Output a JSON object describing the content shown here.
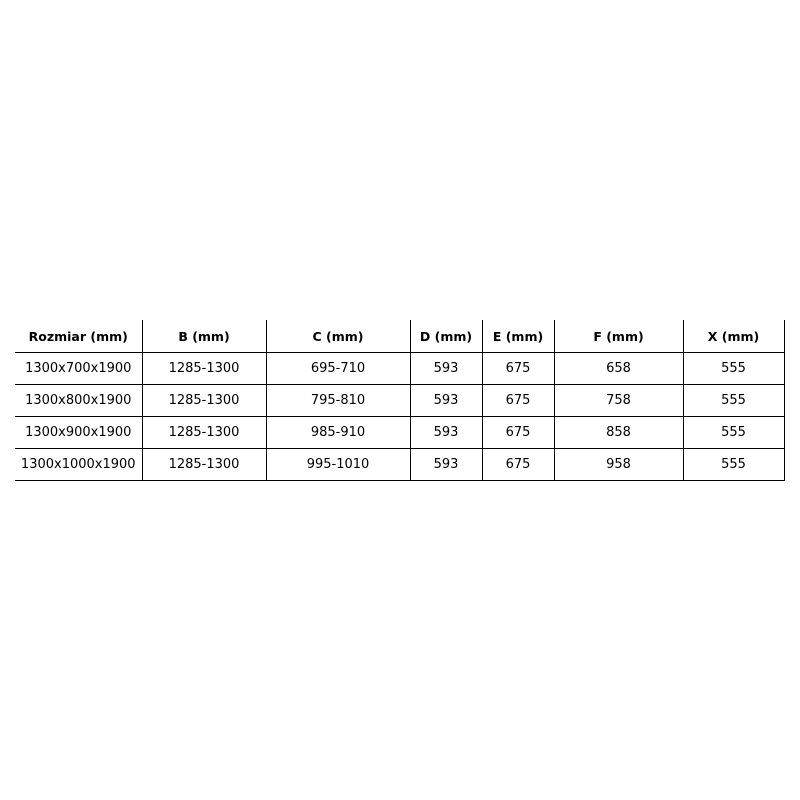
{
  "table": {
    "headers": [
      "Rozmiar (mm)",
      "B (mm)",
      "C (mm)",
      "D (mm)",
      "E (mm)",
      "F (mm)",
      "X (mm)"
    ],
    "rows": [
      [
        "1300x700x1900",
        "1285-1300",
        "695-710",
        "593",
        "675",
        "658",
        "555"
      ],
      [
        "1300x800x1900",
        "1285-1300",
        "795-810",
        "593",
        "675",
        "758",
        "555"
      ],
      [
        "1300x900x1900",
        "1285-1300",
        "985-910",
        "593",
        "675",
        "858",
        "555"
      ],
      [
        "1300x1000x1900",
        "1285-1300",
        "995-1010",
        "593",
        "675",
        "958",
        "555"
      ]
    ]
  }
}
